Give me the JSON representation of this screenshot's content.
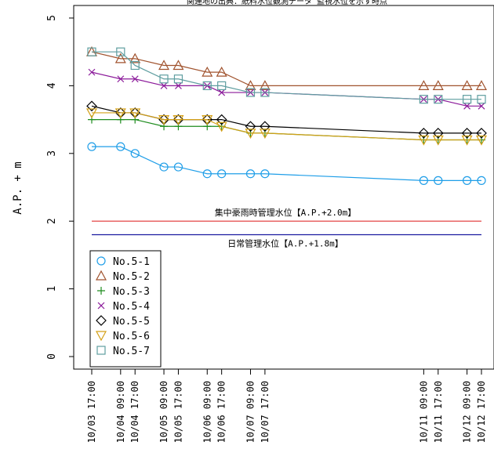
{
  "chart_data": {
    "type": "line",
    "title": "関連地の出典：紙料水位観測データ 監視水位を示す時点",
    "ylabel": "A.P. + m",
    "xlabel": "",
    "ylim": [
      0,
      5
    ],
    "yticks": [
      "0",
      "1",
      "2",
      "3",
      "4",
      "5"
    ],
    "x": [
      "10/03 17:00",
      "10/04 09:00",
      "10/04 17:00",
      "10/05 09:00",
      "10/05 17:00",
      "10/06 09:00",
      "10/06 17:00",
      "10/07 09:00",
      "10/07 17:00",
      "10/11 09:00",
      "10/11 17:00",
      "10/12 09:00",
      "10/12 17:00"
    ],
    "x_hours": [
      0,
      16,
      24,
      40,
      48,
      64,
      72,
      88,
      96,
      184,
      192,
      208,
      216
    ],
    "series": [
      {
        "name": "No.5-1",
        "color": "#1f9ee8",
        "marker": "circle",
        "values": [
          3.1,
          3.1,
          3.0,
          2.8,
          2.8,
          2.7,
          2.7,
          2.7,
          2.7,
          2.6,
          2.6,
          2.6,
          2.6
        ]
      },
      {
        "name": "No.5-2",
        "color": "#a0522d",
        "marker": "triangle-up",
        "values": [
          4.5,
          4.4,
          4.4,
          4.3,
          4.3,
          4.2,
          4.2,
          4.0,
          4.0,
          4.0,
          4.0,
          4.0,
          4.0
        ]
      },
      {
        "name": "No.5-3",
        "color": "#1e8c1e",
        "marker": "plus",
        "values": [
          3.5,
          3.5,
          3.5,
          3.4,
          3.4,
          3.4,
          3.4,
          3.3,
          3.3,
          3.2,
          3.2,
          3.2,
          3.2
        ]
      },
      {
        "name": "No.5-4",
        "color": "#8b1a9a",
        "marker": "cross",
        "values": [
          4.2,
          4.1,
          4.1,
          4.0,
          4.0,
          4.0,
          3.9,
          3.9,
          3.9,
          3.8,
          3.8,
          3.7,
          3.7
        ]
      },
      {
        "name": "No.5-5",
        "color": "#000000",
        "marker": "diamond",
        "values": [
          3.7,
          3.6,
          3.6,
          3.5,
          3.5,
          3.5,
          3.5,
          3.4,
          3.4,
          3.3,
          3.3,
          3.3,
          3.3
        ]
      },
      {
        "name": "No.5-6",
        "color": "#d4a017",
        "marker": "triangle-down",
        "values": [
          3.6,
          3.6,
          3.6,
          3.5,
          3.5,
          3.5,
          3.4,
          3.3,
          3.3,
          3.2,
          3.2,
          3.2,
          3.2
        ]
      },
      {
        "name": "No.5-7",
        "color": "#5f9ea0",
        "marker": "square",
        "values": [
          4.5,
          4.5,
          4.3,
          4.1,
          4.1,
          4.0,
          4.0,
          3.9,
          3.9,
          3.8,
          3.8,
          3.8,
          3.8
        ]
      }
    ],
    "reference_lines": [
      {
        "label": "集中豪雨時管理水位【A.P.+2.0m】",
        "value": 2.0,
        "color": "#e03030"
      },
      {
        "label": "日常管理水位【A.P.+1.8m】",
        "value": 1.8,
        "color": "#1a1aa0"
      }
    ],
    "legend_position": "bottom-left",
    "grid": false
  }
}
